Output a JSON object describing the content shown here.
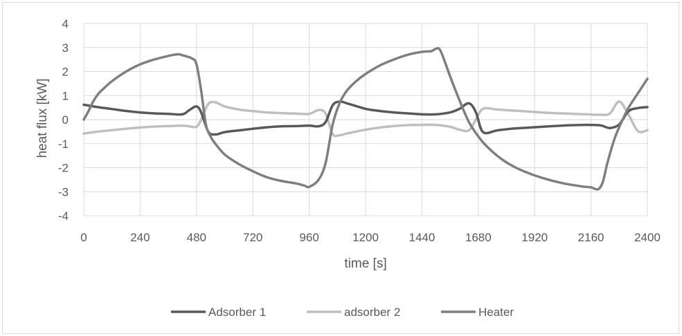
{
  "chart_data": {
    "type": "line",
    "title": "",
    "xlabel": "time [s]",
    "ylabel": "heat flux [kW]",
    "xlim": [
      0,
      2400
    ],
    "ylim": [
      -4,
      4
    ],
    "xticks": [
      0,
      240,
      480,
      720,
      960,
      1200,
      1440,
      1680,
      1920,
      2160,
      2400
    ],
    "yticks": [
      -4,
      -3,
      -2,
      -1,
      0,
      1,
      2,
      3,
      4
    ],
    "grid": true,
    "legend_position": "bottom",
    "series": [
      {
        "name": "Adsorber 1",
        "color": "#595959",
        "x": [
          0,
          60,
          120,
          180,
          240,
          300,
          360,
          420,
          450,
          480,
          500,
          530,
          560,
          600,
          660,
          720,
          780,
          840,
          900,
          960,
          1000,
          1030,
          1060,
          1090,
          1120,
          1200,
          1260,
          1320,
          1380,
          1440,
          1500,
          1560,
          1600,
          1640,
          1670,
          1700,
          1760,
          1820,
          1900,
          1980,
          2060,
          2140,
          2200,
          2240,
          2280,
          2320,
          2360,
          2400
        ],
        "y": [
          0.62,
          0.52,
          0.44,
          0.36,
          0.3,
          0.26,
          0.24,
          0.22,
          0.4,
          0.55,
          0.3,
          -0.5,
          -0.62,
          -0.52,
          -0.45,
          -0.38,
          -0.32,
          -0.28,
          -0.27,
          -0.25,
          -0.28,
          -0.1,
          0.6,
          0.75,
          0.68,
          0.45,
          0.36,
          0.3,
          0.26,
          0.22,
          0.22,
          0.3,
          0.45,
          0.68,
          0.3,
          -0.52,
          -0.45,
          -0.38,
          -0.33,
          -0.28,
          -0.24,
          -0.22,
          -0.24,
          -0.35,
          -0.2,
          0.35,
          0.48,
          0.52
        ]
      },
      {
        "name": "adsorber 2",
        "color": "#bfbfbf",
        "x": [
          0,
          60,
          120,
          180,
          240,
          300,
          360,
          420,
          450,
          480,
          500,
          530,
          560,
          600,
          660,
          720,
          780,
          840,
          900,
          960,
          1000,
          1030,
          1060,
          1090,
          1120,
          1200,
          1260,
          1320,
          1380,
          1440,
          1500,
          1560,
          1600,
          1640,
          1670,
          1700,
          1760,
          1820,
          1900,
          1980,
          2060,
          2140,
          2200,
          2240,
          2280,
          2320,
          2360,
          2400
        ],
        "y": [
          -0.58,
          -0.5,
          -0.44,
          -0.38,
          -0.33,
          -0.29,
          -0.27,
          -0.25,
          -0.28,
          -0.3,
          0.0,
          0.65,
          0.72,
          0.55,
          0.42,
          0.35,
          0.3,
          0.27,
          0.25,
          0.24,
          0.4,
          0.25,
          -0.6,
          -0.65,
          -0.58,
          -0.42,
          -0.33,
          -0.27,
          -0.23,
          -0.22,
          -0.22,
          -0.3,
          -0.42,
          -0.45,
          0.0,
          0.45,
          0.42,
          0.38,
          0.33,
          0.28,
          0.25,
          0.22,
          0.2,
          0.25,
          0.75,
          0.2,
          -0.48,
          -0.44
        ]
      },
      {
        "name": "Heater",
        "color": "#7f7f7f",
        "x": [
          0,
          20,
          40,
          60,
          80,
          120,
          180,
          240,
          300,
          360,
          400,
          420,
          460,
          480,
          500,
          520,
          540,
          560,
          600,
          660,
          720,
          780,
          840,
          900,
          940,
          960,
          1000,
          1030,
          1060,
          1090,
          1120,
          1160,
          1200,
          1260,
          1320,
          1380,
          1440,
          1480,
          1500,
          1520,
          1560,
          1600,
          1640,
          1680,
          1720,
          1780,
          1840,
          1900,
          1960,
          2040,
          2120,
          2160,
          2190,
          2210,
          2230,
          2260,
          2290,
          2320,
          2360,
          2400
        ],
        "y": [
          0.0,
          0.35,
          0.75,
          1.05,
          1.25,
          1.6,
          2.0,
          2.3,
          2.5,
          2.65,
          2.72,
          2.68,
          2.55,
          2.3,
          1.2,
          -0.2,
          -0.7,
          -1.0,
          -1.45,
          -1.85,
          -2.15,
          -2.4,
          -2.55,
          -2.65,
          -2.75,
          -2.8,
          -2.5,
          -1.8,
          -0.2,
          0.7,
          1.2,
          1.6,
          1.9,
          2.25,
          2.5,
          2.7,
          2.82,
          2.85,
          2.95,
          2.85,
          1.8,
          0.8,
          -0.1,
          -0.7,
          -1.15,
          -1.65,
          -2.0,
          -2.25,
          -2.45,
          -2.65,
          -2.78,
          -2.82,
          -2.9,
          -2.6,
          -1.8,
          -0.8,
          -0.1,
          0.5,
          1.1,
          1.7
        ]
      }
    ]
  }
}
